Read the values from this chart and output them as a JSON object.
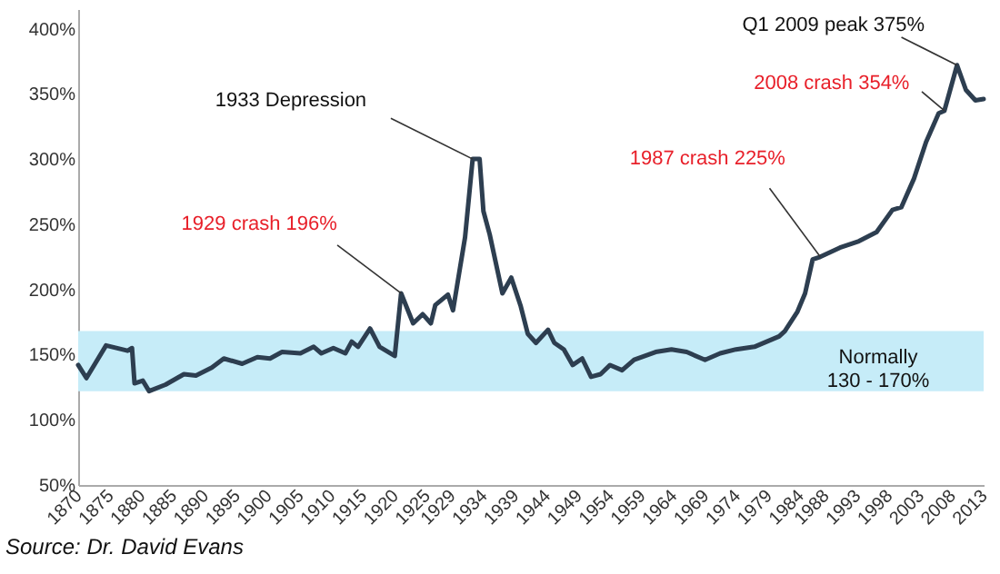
{
  "chart_data": {
    "type": "line",
    "x": [
      1870,
      1871.3,
      1874.4,
      1877.8,
      1878.5,
      1878.9,
      1880.2,
      1881.2,
      1883.8,
      1886.7,
      1888.6,
      1891.1,
      1893,
      1895.9,
      1898.3,
      1900.3,
      1902.2,
      1905.1,
      1907.2,
      1908.4,
      1910.3,
      1912.2,
      1913.2,
      1914.2,
      1916.1,
      1917.6,
      1920,
      1921,
      1922.9,
      1924.4,
      1925.7,
      1926.4,
      1928.4,
      1929.2,
      1931.1,
      1932.3,
      1933.4,
      1934,
      1935,
      1937,
      1938.4,
      1939.9,
      1941,
      1942.3,
      1944.2,
      1945.2,
      1946.7,
      1948.1,
      1949.6,
      1951,
      1952.5,
      1954,
      1955.9,
      1957.8,
      1961.2,
      1963.7,
      1966.1,
      1969,
      1971.4,
      1973.9,
      1976.8,
      1980.7,
      1981.6,
      1983.6,
      1984.8,
      1986,
      1987.2,
      1990.3,
      1993.3,
      1996.1,
      1998.6,
      2000,
      2002,
      2003.9,
      2005.9,
      2006.8,
      2008.8,
      2010.2,
      2011.7,
      2013
    ],
    "series": [
      {
        "color": "#2d3e50",
        "values": [
          142,
          132,
          157,
          153,
          155,
          128,
          130,
          122,
          127,
          135,
          134,
          140,
          147,
          143,
          148,
          147,
          152,
          151,
          156,
          151,
          155,
          151,
          160,
          156,
          170,
          156,
          149,
          197,
          174,
          181,
          174,
          188,
          196,
          184,
          240,
          300,
          300,
          260,
          242,
          197,
          209,
          187,
          166,
          159,
          169,
          159,
          154,
          142,
          147,
          133,
          135,
          142,
          138,
          146,
          152,
          154,
          152,
          146,
          151,
          154,
          156,
          164,
          168,
          183,
          197,
          223,
          225,
          232,
          237,
          244,
          261,
          263,
          285,
          313,
          335,
          337,
          372,
          353,
          345,
          346
        ]
      }
    ],
    "xlim": [
      1870,
      2013
    ],
    "xticks": [
      1870,
      1875,
      1880,
      1885,
      1890,
      1895,
      1900,
      1905,
      1910,
      1915,
      1920,
      1925,
      1929,
      1934,
      1939,
      1944,
      1949,
      1954,
      1959,
      1964,
      1969,
      1974,
      1979,
      1984,
      1988,
      1993,
      1998,
      2003,
      2008,
      2013
    ],
    "ylim": [
      50,
      415
    ],
    "yticks": [
      {
        "value": 50,
        "label": "50%"
      },
      {
        "value": 100,
        "label": "100%"
      },
      {
        "value": 150,
        "label": "150%"
      },
      {
        "value": 200,
        "label": "200%"
      },
      {
        "value": 250,
        "label": "250%"
      },
      {
        "value": 300,
        "label": "300%"
      },
      {
        "value": 350,
        "label": "350%"
      },
      {
        "value": 400,
        "label": "400%"
      }
    ],
    "grid": false,
    "legend": false,
    "marker": "none",
    "line_style": "solid",
    "bands": [
      {
        "axis": "y",
        "from": 122,
        "to": 168,
        "color": "#c6ecf8",
        "label": "Normally\n130 - 170%"
      }
    ],
    "annotations": [
      {
        "text": "1929 crash 196%",
        "x": 1921,
        "y": 197
      },
      {
        "text": "1933 Depression",
        "x": 1932.3,
        "y": 300
      },
      {
        "text": "1987 crash 225%",
        "x": 1987.2,
        "y": 225
      },
      {
        "text": "2008 crash 354%",
        "x": 2006.8,
        "y": 337
      },
      {
        "text": "Q1 2009 peak 375%",
        "x": 2008.8,
        "y": 372
      },
      "Source: Dr. David Evans"
    ]
  }
}
